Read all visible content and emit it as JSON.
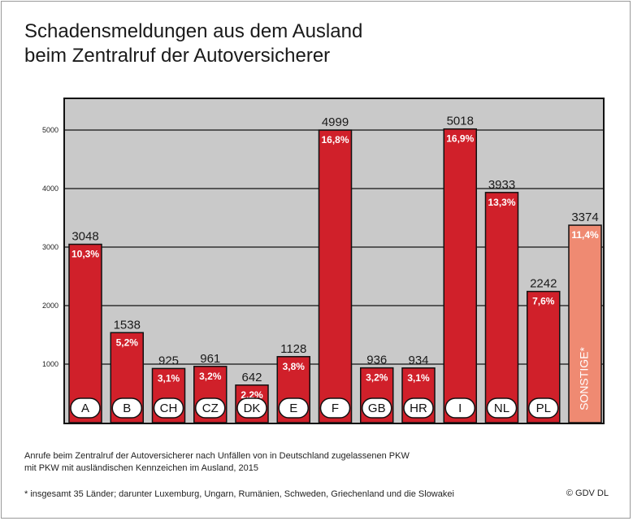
{
  "title": [
    "Schadensmeldungen aus dem Ausland",
    "beim Zentralruf der Autoversicherer"
  ],
  "chart_data": {
    "type": "bar",
    "categories": [
      "A",
      "B",
      "CH",
      "CZ",
      "DK",
      "E",
      "F",
      "GB",
      "HR",
      "I",
      "NL",
      "PL",
      "SONSTIGE*"
    ],
    "values": [
      3048,
      1538,
      925,
      961,
      642,
      1128,
      4999,
      936,
      934,
      5018,
      3933,
      2242,
      3374
    ],
    "value_labels": [
      "3048",
      "1538",
      "925",
      "961",
      "642",
      "1128",
      "4999",
      "936",
      "934",
      "5018",
      "3933",
      "2242",
      "3374"
    ],
    "percent_labels": [
      "10,3%",
      "5,2%",
      "3,1%",
      "3,2%",
      "2,2%",
      "3,8%",
      "16,8%",
      "3,2%",
      "3,1%",
      "16,9%",
      "13,3%",
      "7,6%",
      "11,4%"
    ],
    "yticks": [
      1000,
      2000,
      3000,
      4000,
      5000
    ],
    "ylim": [
      0,
      5500
    ],
    "grid": true,
    "colors": {
      "bar": "#d0202a",
      "other": "#ef8a72",
      "background": "#c9c9c9",
      "gridline": "#111111"
    }
  },
  "notes": {
    "source": [
      "Anrufe beim Zentralruf der Autoversicherer nach Unfällen von in Deutschland zugelassenen PKW",
      "mit PKW mit ausländischen Kennzeichen im Ausland, 2015"
    ],
    "footnote": "* insgesamt 35 Länder; darunter Luxemburg, Ungarn, Rumänien, Schweden, Griechenland und die Slowakei",
    "copyright": "© GDV DL"
  }
}
